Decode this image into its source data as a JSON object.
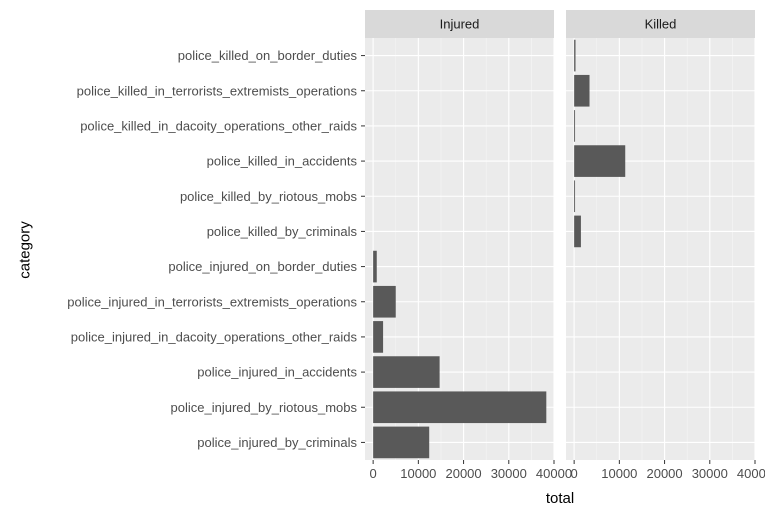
{
  "chart_data": {
    "type": "bar",
    "orientation": "horizontal",
    "xlabel": "total",
    "ylabel": "category",
    "xlim": [
      -1800,
      40000
    ],
    "xticks": [
      0,
      10000,
      20000,
      30000,
      40000
    ],
    "xtick_labels": [
      "0",
      "10000",
      "20000",
      "30000",
      "40000"
    ],
    "categories": [
      "police_killed_on_border_duties",
      "police_killed_in_terrorists_extremists_operations",
      "police_killed_in_dacoity_operations_other_raids",
      "police_killed_in_accidents",
      "police_killed_by_riotous_mobs",
      "police_killed_by_criminals",
      "police_injured_on_border_duties",
      "police_injured_in_terrorists_extremists_operations",
      "police_injured_in_dacoity_operations_other_raids",
      "police_injured_in_accidents",
      "police_injured_by_riotous_mobs",
      "police_injured_by_criminals"
    ],
    "panels": [
      {
        "name": "Injured",
        "values": [
          0,
          0,
          0,
          0,
          0,
          0,
          800,
          5000,
          2200,
          14700,
          38300,
          12400
        ]
      },
      {
        "name": "Killed",
        "values": [
          300,
          3400,
          200,
          11300,
          200,
          1500,
          0,
          0,
          0,
          0,
          0,
          0
        ]
      }
    ],
    "bar_color": "#595959",
    "panel_background": "#ebebeb",
    "grid": true,
    "legend": "none"
  }
}
